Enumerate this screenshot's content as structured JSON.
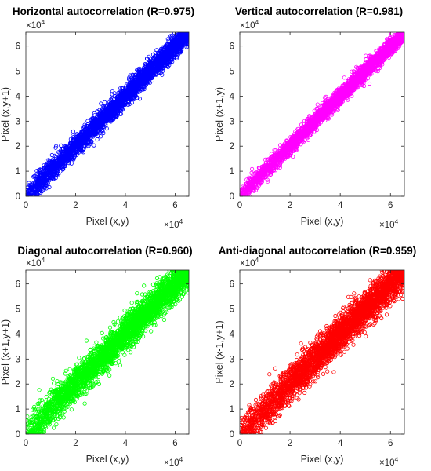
{
  "chart_data": [
    {
      "type": "scatter",
      "title": "Horizontal autocorrelation (R=0.975)",
      "xlabel": "Pixel (x,y)",
      "ylabel": "Pixel (x,y+1)",
      "xlim": [
        0,
        65535
      ],
      "ylim": [
        0,
        65535
      ],
      "x_ticks": [
        "0",
        "2",
        "4",
        "6"
      ],
      "y_ticks": [
        "0",
        "1",
        "2",
        "3",
        "4",
        "5",
        "6"
      ],
      "x_exponent": {
        "base": "×10",
        "power": "4"
      },
      "y_exponent": {
        "base": "×10",
        "power": "4"
      },
      "marker": "circle",
      "color": "#0000ff",
      "correlation": 0.975,
      "grid": false
    },
    {
      "type": "scatter",
      "title": "Vertical autocorrelation (R=0.981)",
      "xlabel": "Pixel (x,y)",
      "ylabel": "Pixel (x+1,y)",
      "xlim": [
        0,
        65535
      ],
      "ylim": [
        0,
        65535
      ],
      "x_ticks": [
        "0",
        "2",
        "4",
        "6"
      ],
      "y_ticks": [
        "0",
        "1",
        "2",
        "3",
        "4",
        "5",
        "6"
      ],
      "x_exponent": {
        "base": "×10",
        "power": "4"
      },
      "y_exponent": {
        "base": "×10",
        "power": "4"
      },
      "marker": "circle",
      "color": "#ff00ff",
      "correlation": 0.981,
      "grid": false
    },
    {
      "type": "scatter",
      "title": "Diagonal autocorrelation (R=0.960)",
      "xlabel": "Pixel (x,y)",
      "ylabel": "Pixel (x+1,y+1)",
      "xlim": [
        0,
        65535
      ],
      "ylim": [
        0,
        65535
      ],
      "x_ticks": [
        "0",
        "2",
        "4",
        "6"
      ],
      "y_ticks": [
        "0",
        "1",
        "2",
        "3",
        "4",
        "5",
        "6"
      ],
      "x_exponent": {
        "base": "×10",
        "power": "4"
      },
      "y_exponent": {
        "base": "×10",
        "power": "4"
      },
      "marker": "circle",
      "color": "#00ff00",
      "correlation": 0.96,
      "grid": false
    },
    {
      "type": "scatter",
      "title": "Anti-diagonal autocorrelation (R=0.959)",
      "xlabel": "Pixel (x,y)",
      "ylabel": "Pixel (x-1,y+1)",
      "xlim": [
        0,
        65535
      ],
      "ylim": [
        0,
        65535
      ],
      "x_ticks": [
        "0",
        "2",
        "4",
        "6"
      ],
      "y_ticks": [
        "0",
        "1",
        "2",
        "3",
        "4",
        "5",
        "6"
      ],
      "x_exponent": {
        "base": "×10",
        "power": "4"
      },
      "y_exponent": {
        "base": "×10",
        "power": "4"
      },
      "marker": "circle",
      "color": "#ff0000",
      "correlation": 0.959,
      "grid": false
    }
  ]
}
